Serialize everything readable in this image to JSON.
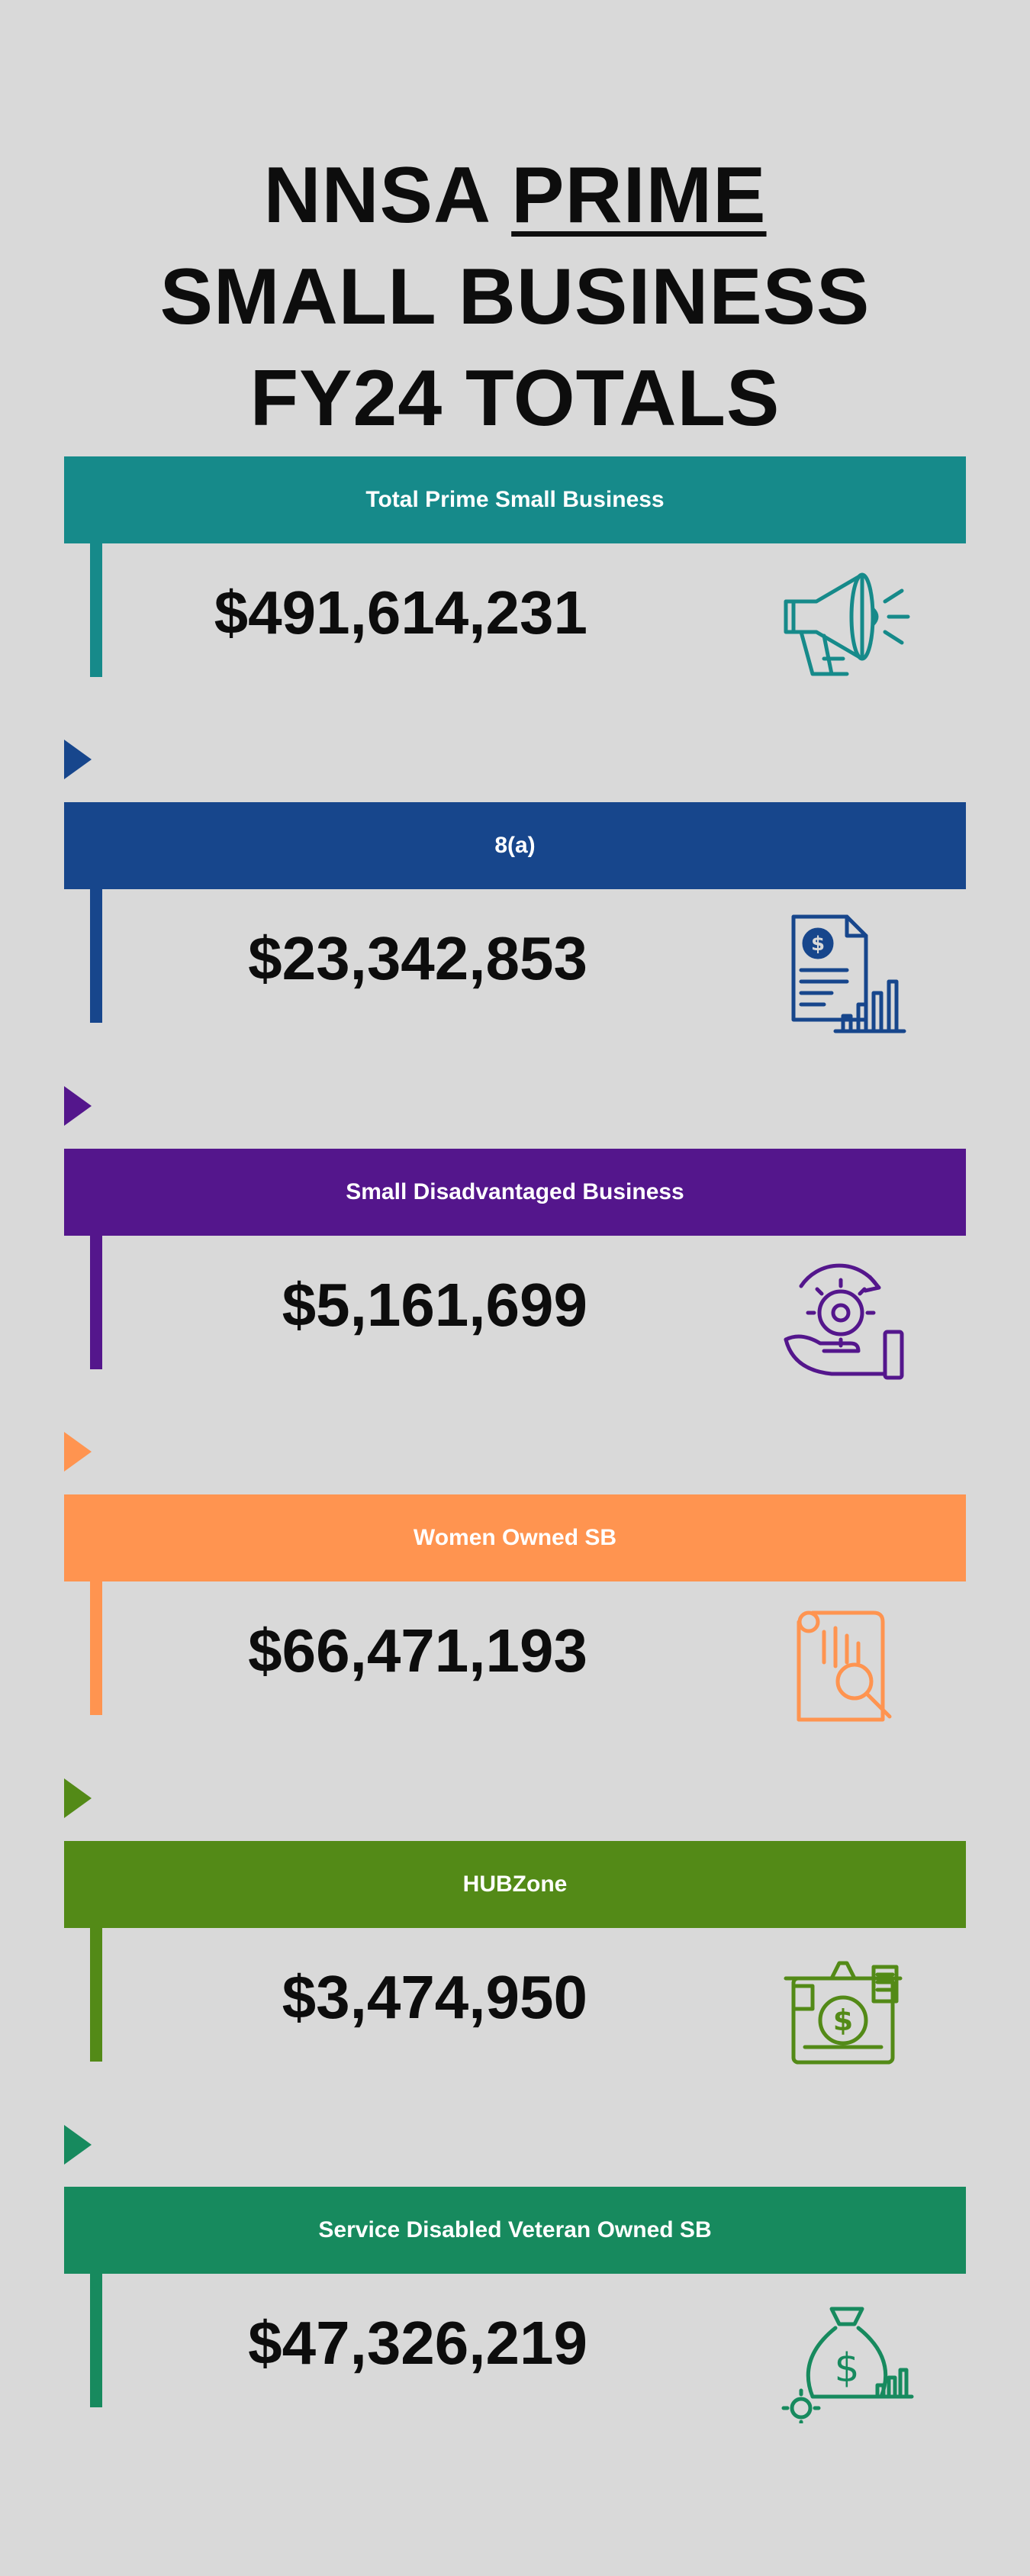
{
  "title": {
    "line1_prefix": "NNSA ",
    "line1_underlined": "PRIME",
    "line2": "SMALL BUSINESS",
    "line3": "FY24 TOTALS"
  },
  "sections": [
    {
      "label": "Total Prime Small Business",
      "amount": "$491,614,231",
      "color": "#168a8a",
      "icon": "megaphone-icon"
    },
    {
      "label": "8(a)",
      "amount": "$23,342,853",
      "color": "#17468c",
      "icon": "financial-report-icon"
    },
    {
      "label": "Small Disadvantaged Business",
      "amount": "$5,161,699",
      "color": "#54168c",
      "icon": "hand-gear-icon"
    },
    {
      "label": "Women Owned SB",
      "amount": "$66,471,193",
      "color": "#ff9450",
      "icon": "document-search-icon"
    },
    {
      "label": "HUBZone",
      "amount": "$3,474,950",
      "color": "#538a17",
      "icon": "money-stack-icon"
    },
    {
      "label": "Service Disabled Veteran Owned SB",
      "amount": "$47,326,219",
      "color": "#178a5e",
      "icon": "money-bag-icon"
    }
  ]
}
